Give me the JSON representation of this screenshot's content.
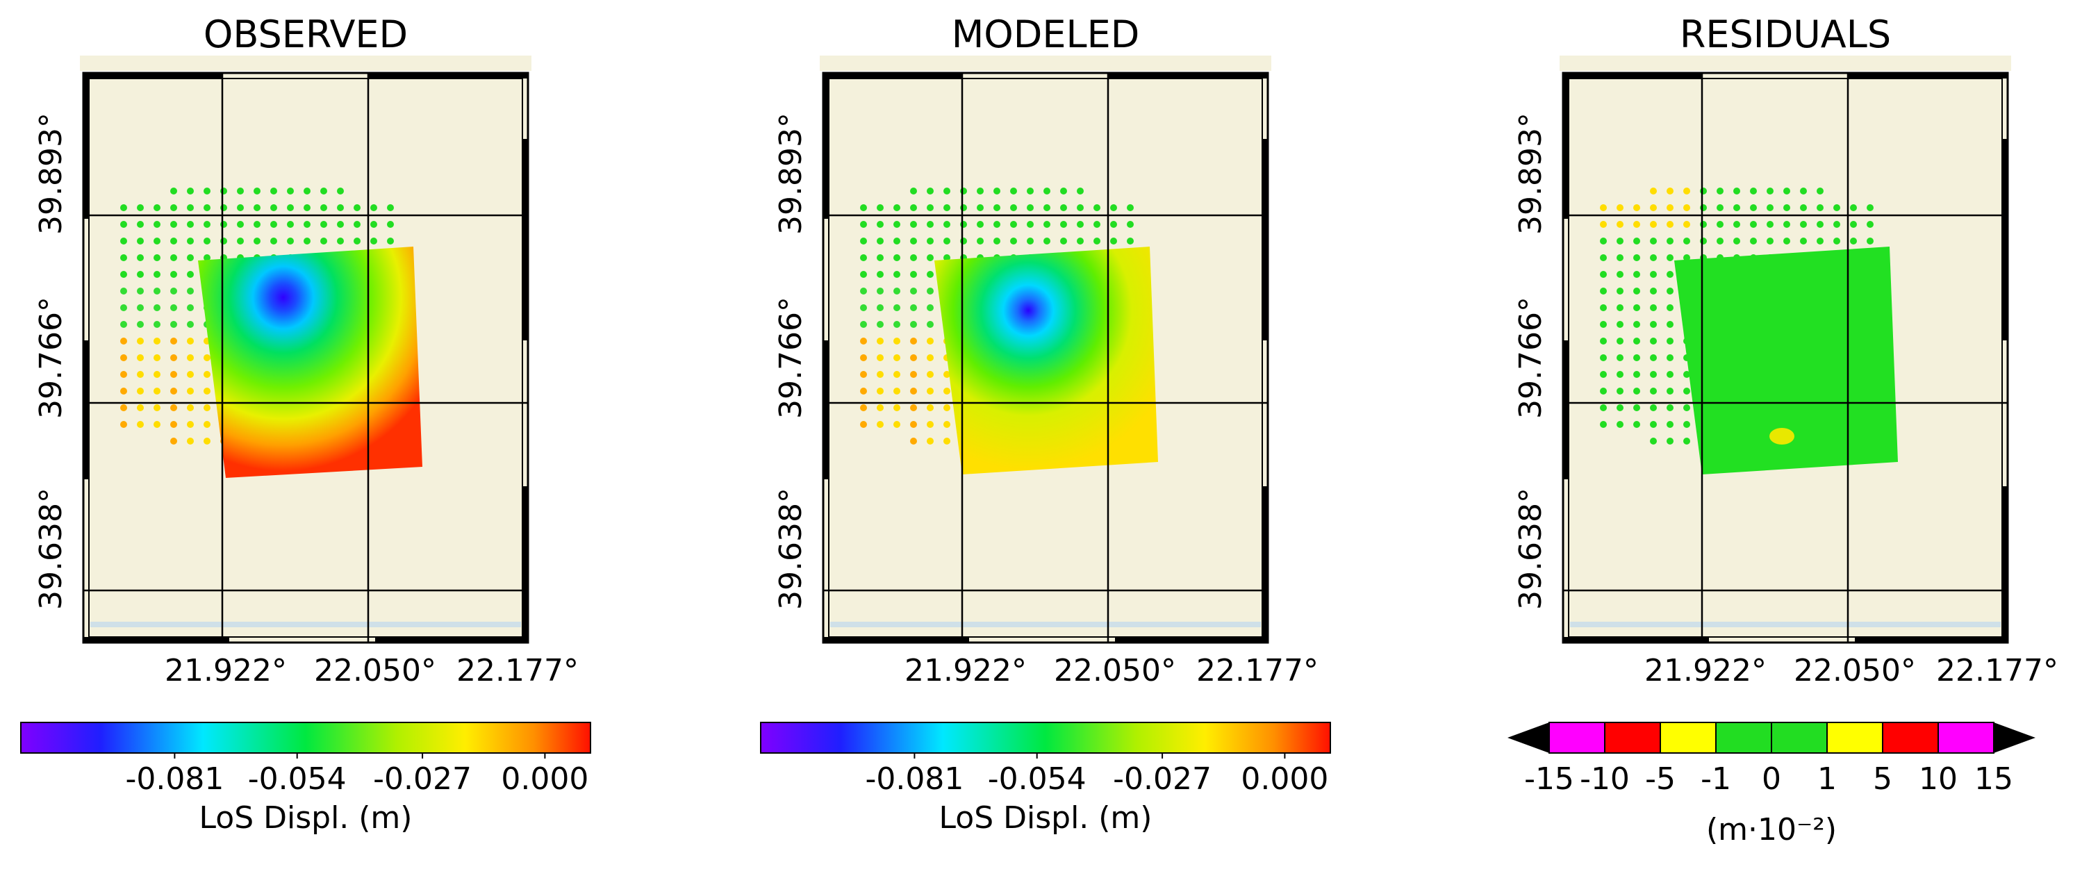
{
  "panels": [
    {
      "title": "OBSERVED",
      "lat_ticks": [
        "39.893°",
        "39.766°",
        "39.638°"
      ],
      "lon_ticks": [
        "21.922°",
        "22.050°",
        "22.177°"
      ],
      "colorbar": {
        "ticks": [
          "-0.081",
          "-0.054",
          "-0.027",
          "0.000"
        ],
        "label": "LoS Displ. (m)"
      }
    },
    {
      "title": "MODELED",
      "lat_ticks": [
        "39.893°",
        "39.766°",
        "39.638°"
      ],
      "lon_ticks": [
        "21.922°",
        "22.050°",
        "22.177°"
      ],
      "colorbar": {
        "ticks": [
          "-0.081",
          "-0.054",
          "-0.027",
          "0.000"
        ],
        "label": "LoS Displ. (m)"
      }
    },
    {
      "title": "RESIDUALS",
      "lat_ticks": [
        "39.893°",
        "39.766°",
        "39.638°"
      ],
      "lon_ticks": [
        "21.922°",
        "22.050°",
        "22.177°"
      ],
      "colorbar": {
        "ticks": [
          "-15",
          "-10",
          "-5",
          "-1",
          "0",
          "1",
          "5",
          "10",
          "15"
        ],
        "label": "(m·10⁻²)"
      }
    }
  ],
  "chart_data": [
    {
      "type": "heatmap",
      "title": "OBSERVED",
      "ylabel_ticks": [
        39.893,
        39.766,
        39.638
      ],
      "xlabel_ticks": [
        21.922,
        22.05,
        22.177
      ],
      "ylim": [
        39.6,
        40.0
      ],
      "colorbar_range": [
        -0.1,
        0.005
      ],
      "colorbar_ticks": [
        -0.081,
        -0.054,
        -0.027,
        0.0
      ],
      "colorbar_label": "LoS Displ. (m)",
      "colormap": "rainbow",
      "deformation_center": {
        "lon": 21.93,
        "lat": 39.84,
        "min_value": -0.095
      },
      "background_color": "#f4f1dc"
    },
    {
      "type": "heatmap",
      "title": "MODELED",
      "ylabel_ticks": [
        39.893,
        39.766,
        39.638
      ],
      "xlabel_ticks": [
        21.922,
        22.05,
        22.177
      ],
      "colorbar_range": [
        -0.1,
        0.005
      ],
      "colorbar_ticks": [
        -0.081,
        -0.054,
        -0.027,
        0.0
      ],
      "colorbar_label": "LoS Displ. (m)",
      "colormap": "rainbow",
      "deformation_center": {
        "lon": 21.935,
        "lat": 39.84,
        "min_value": -0.09
      },
      "background_color": "#f4f1dc"
    },
    {
      "type": "heatmap",
      "title": "RESIDUALS",
      "ylabel_ticks": [
        39.893,
        39.766,
        39.638
      ],
      "xlabel_ticks": [
        21.922,
        22.05,
        22.177
      ],
      "colorbar_bounds": [
        -15,
        -10,
        -5,
        -1,
        0,
        1,
        5,
        10,
        15
      ],
      "colorbar_colors": [
        "#ff00ff",
        "#ff0000",
        "#ffff00",
        "#22dd22",
        "#22dd22",
        "#ffff00",
        "#ff0000",
        "#ff00ff"
      ],
      "colorbar_extend": "both",
      "colorbar_label": "(m·10⁻²)",
      "dominant_residual_bin": [
        -1,
        1
      ],
      "background_color": "#f4f1dc"
    }
  ]
}
